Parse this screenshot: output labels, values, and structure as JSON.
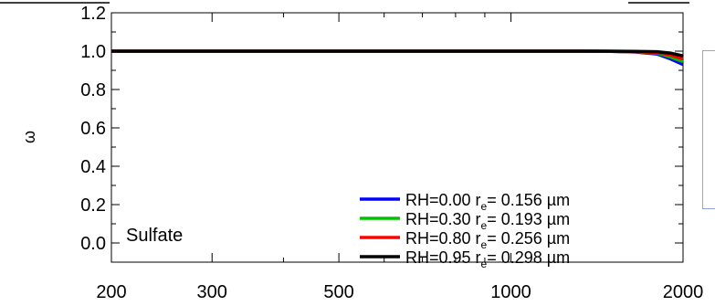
{
  "chart_data": {
    "type": "line",
    "title": "",
    "xlabel": "",
    "ylabel": "ω",
    "xscale": "log",
    "xlim": [
      200,
      2000
    ],
    "ylim": [
      -0.1,
      1.2
    ],
    "xticks": [
      {
        "value": 200,
        "label": "200"
      },
      {
        "value": 300,
        "label": "300"
      },
      {
        "value": 500,
        "label": "500"
      },
      {
        "value": 1000,
        "label": "1000"
      },
      {
        "value": 2000,
        "label": "2000"
      }
    ],
    "yticks": [
      "0.0",
      "0.2",
      "0.4",
      "0.6",
      "0.8",
      "1.0",
      "1.2"
    ],
    "annotation": "Sulfate",
    "legend_position": "bottom-right",
    "series": [
      {
        "name": "RH=0.00 r",
        "sub": "e",
        "suffix": "= 0.156 µm",
        "color": "#0000ff",
        "x": [
          200,
          1100,
          1300,
          1500,
          1650,
          1800,
          1900,
          2000
        ],
        "y": [
          1.0,
          1.0,
          1.0,
          0.999,
          0.995,
          0.985,
          0.96,
          0.93
        ]
      },
      {
        "name": "RH=0.30 r",
        "sub": "e",
        "suffix": "= 0.193 µm",
        "color": "#00c000",
        "x": [
          200,
          1100,
          1300,
          1500,
          1650,
          1800,
          1900,
          2000
        ],
        "y": [
          1.0,
          1.0,
          1.0,
          0.999,
          0.996,
          0.99,
          0.97,
          0.945
        ]
      },
      {
        "name": "RH=0.80 r",
        "sub": "e",
        "suffix": "= 0.256 µm",
        "color": "#ff0000",
        "x": [
          200,
          1100,
          1300,
          1500,
          1650,
          1800,
          1900,
          2000
        ],
        "y": [
          1.0,
          1.0,
          1.0,
          0.999,
          0.997,
          0.993,
          0.98,
          0.96
        ]
      },
      {
        "name": "RH=0.95 r",
        "sub": "e",
        "suffix": "= 0.298 µm",
        "color": "#000000",
        "x": [
          200,
          1100,
          1300,
          1500,
          1650,
          1800,
          1900,
          2000
        ],
        "y": [
          1.0,
          1.0,
          1.0,
          1.0,
          0.999,
          0.997,
          0.99,
          0.975
        ]
      }
    ]
  }
}
